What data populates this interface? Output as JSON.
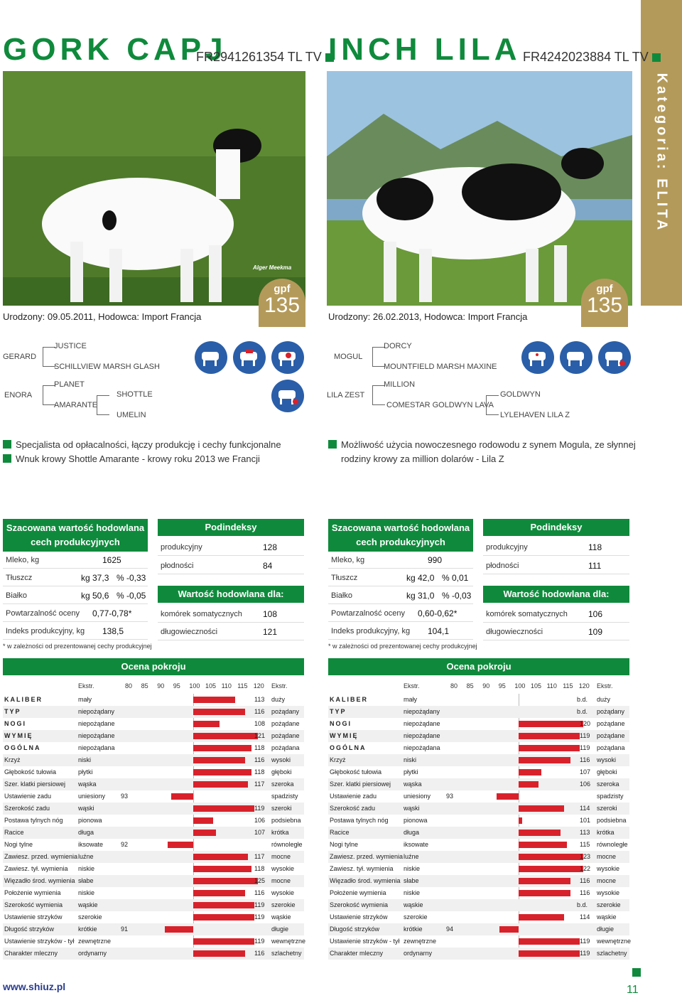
{
  "category": "Kategoria: ELITA",
  "colors": {
    "green": "#0f8a3c",
    "gold": "#b49a5a",
    "blue": "#2a5ea8",
    "red": "#d8222b"
  },
  "left": {
    "name": "GORK CAPJ",
    "id": "FR2941261354 TL TV",
    "born": "Urodzony: 09.05.2011, Hodowca: Import Francja",
    "photo_credit": "Alger Meekma",
    "gpf_label": "gpf",
    "gpf_value": "135",
    "pedigree": {
      "sire": "GERARD",
      "sire_sire": "JUSTICE",
      "sire_dam": "SCHILLVIEW MARSH GLASH",
      "dam": "ENORA",
      "dam_sire": "PLANET",
      "dam_dam": "AMARANTE",
      "dam_dam_sire": "SHOTTLE",
      "dam_dam_dam": "UMELIN"
    },
    "bullets": [
      "Specjalista od opłacalności, łączy produkcję i cechy funkcjonalne",
      "Wnuk krowy Shottle Amarante - krowy roku 2013 we Francji"
    ],
    "production": {
      "title1": "Szacowana wartość hodowlana",
      "title2": "cech produkcyjnych",
      "mleko_label": "Mleko, kg",
      "mleko": "1625",
      "tluszcz_label": "Tłuszcz",
      "tluszcz_kg": "kg 37,3",
      "tluszcz_pct": "% -0,33",
      "bialko_label": "Białko",
      "bialko_kg": "kg 50,6",
      "bialko_pct": "% -0,05",
      "powt_label": "Powtarzalność oceny",
      "powt": "0,77-0,78*",
      "indeks_label": "Indeks produkcyjny, kg",
      "indeks": "138,5",
      "note": "* w zależności od prezentowanej cechy produkcyjnej"
    },
    "podindeksy": {
      "title": "Podindeksy",
      "prod_label": "produkcyjny",
      "prod": "128",
      "plod_label": "płodności",
      "plod": "84",
      "wh_title": "Wartość hodowlana dla:",
      "kom_label": "komórek somatycznych",
      "kom": "108",
      "dlug_label": "długowieczności",
      "dlug": "121"
    },
    "ocena": {
      "title": "Ocena pokroju",
      "ekstr": "Ekstr.",
      "ticks": [
        "80",
        "85",
        "90",
        "95",
        "100",
        "105",
        "110",
        "115",
        "120"
      ],
      "traits": [
        {
          "name": "KALIBER",
          "low": "mały",
          "value": 113,
          "label": "113",
          "high": "duży",
          "bold": true
        },
        {
          "name": "TYP",
          "low": "niepożądany",
          "value": 116,
          "label": "116",
          "high": "pożądany",
          "bold": true
        },
        {
          "name": "NOGI",
          "low": "niepożądane",
          "value": 108,
          "label": "108",
          "high": "pożądane",
          "bold": true
        },
        {
          "name": "WYMIĘ",
          "low": "niepożądane",
          "value": 121,
          "label": "121",
          "high": "pożądane",
          "bold": true
        },
        {
          "name": "OGÓLNA",
          "low": "niepożądana",
          "value": 118,
          "label": "118",
          "high": "pożądana",
          "bold": true
        },
        {
          "name": "Krzyż",
          "low": "niski",
          "value": 116,
          "label": "116",
          "high": "wysoki"
        },
        {
          "name": "Głębokość tułowia",
          "low": "płytki",
          "value": 118,
          "label": "118",
          "high": "głęboki"
        },
        {
          "name": "Szer. klatki piersiowej",
          "low": "wąska",
          "value": 117,
          "label": "117",
          "high": "szeroka"
        },
        {
          "name": "Ustawienie zadu",
          "low": "uniesiony",
          "value": 93,
          "label": "93",
          "high": "spadzisty"
        },
        {
          "name": "Szerokość zadu",
          "low": "wąski",
          "value": 119,
          "label": "119",
          "high": "szeroki"
        },
        {
          "name": "Postawa tylnych nóg",
          "low": "pionowa",
          "value": 106,
          "label": "106",
          "high": "podsiebna"
        },
        {
          "name": "Racice",
          "low": "długa",
          "value": 107,
          "label": "107",
          "high": "krótka"
        },
        {
          "name": "Nogi tylne",
          "low": "iksowate",
          "value": 92,
          "label": "92",
          "high": "równoległe"
        },
        {
          "name": "Zawiesz. przed. wymienia",
          "low": "luźne",
          "value": 117,
          "label": "117",
          "high": "mocne"
        },
        {
          "name": "Zawiesz. tył. wymienia",
          "low": "niskie",
          "value": 118,
          "label": "118",
          "high": "wysokie"
        },
        {
          "name": "Więzadło środ. wymienia",
          "low": "słabe",
          "value": 125,
          "label": "125",
          "high": "mocne"
        },
        {
          "name": "Położenie wymienia",
          "low": "niskie",
          "value": 116,
          "label": "116",
          "high": "wysokie"
        },
        {
          "name": "Szerokość wymienia",
          "low": "wąskie",
          "value": 119,
          "label": "119",
          "high": "szerokie"
        },
        {
          "name": "Ustawienie strzyków",
          "low": "szerokie",
          "value": 119,
          "label": "119",
          "high": "wąskie"
        },
        {
          "name": "Długość strzyków",
          "low": "krótkie",
          "value": 91,
          "label": "91",
          "high": "długie"
        },
        {
          "name": "Ustawienie strzyków - tył",
          "low": "zewnętrzne",
          "value": 119,
          "label": "119",
          "high": "wewnętrzne"
        },
        {
          "name": "Charakter mleczny",
          "low": "ordynarny",
          "value": 116,
          "label": "116",
          "high": "szlachetny"
        }
      ]
    }
  },
  "right": {
    "name": "INCH LILA",
    "id": "FR4242023884 TL TV",
    "born": "Urodzony: 26.02.2013, Hodowca: Import Francja",
    "gpf_label": "gpf",
    "gpf_value": "135",
    "pedigree": {
      "sire": "MOGUL",
      "sire_sire": "DORCY",
      "sire_dam": "MOUNTFIELD MARSH MAXINE",
      "dam": "LILA ZEST",
      "dam_sire": "MILLION",
      "dam_dam": "COMESTAR GOLDWYN LAVA",
      "dam_dam_sire": "GOLDWYN",
      "dam_dam_dam": "LYLEHAVEN LILA Z"
    },
    "bullets": [
      "Możliwość użycia nowoczesnego rodowodu z synem Mogula, ze słynnej",
      "rodziny krowy za million dolarów - Lila Z"
    ],
    "production": {
      "title1": "Szacowana wartość hodowlana",
      "title2": "cech produkcyjnych",
      "mleko_label": "Mleko, kg",
      "mleko": "990",
      "tluszcz_label": "Tłuszcz",
      "tluszcz_kg": "kg 42,0",
      "tluszcz_pct": "% 0,01",
      "bialko_label": "Białko",
      "bialko_kg": "kg 31,0",
      "bialko_pct": "% -0,03",
      "powt_label": "Powtarzalność oceny",
      "powt": "0,60-0,62*",
      "indeks_label": "Indeks produkcyjny, kg",
      "indeks": "104,1",
      "note": "* w zależności od prezentowanej cechy produkcyjnej"
    },
    "podindeksy": {
      "title": "Podindeksy",
      "prod_label": "produkcyjny",
      "prod": "118",
      "plod_label": "płodności",
      "plod": "111",
      "wh_title": "Wartość hodowlana dla:",
      "kom_label": "komórek somatycznych",
      "kom": "106",
      "dlug_label": "długowieczności",
      "dlug": "109"
    },
    "ocena": {
      "title": "Ocena pokroju",
      "ekstr": "Ekstr.",
      "ticks": [
        "80",
        "85",
        "90",
        "95",
        "100",
        "105",
        "110",
        "115",
        "120"
      ],
      "traits": [
        {
          "name": "KALIBER",
          "low": "mały",
          "value": null,
          "label": "b.d.",
          "high": "duży",
          "bold": true
        },
        {
          "name": "TYP",
          "low": "niepożądany",
          "value": null,
          "label": "b.d.",
          "high": "pożądany",
          "bold": true
        },
        {
          "name": "NOGI",
          "low": "niepożądane",
          "value": 120,
          "label": "120",
          "high": "pożądane",
          "bold": true
        },
        {
          "name": "WYMIĘ",
          "low": "niepożądane",
          "value": 119,
          "label": "119",
          "high": "pożądane",
          "bold": true
        },
        {
          "name": "OGÓLNA",
          "low": "niepożądana",
          "value": 119,
          "label": "119",
          "high": "pożądana",
          "bold": true
        },
        {
          "name": "Krzyż",
          "low": "niski",
          "value": 116,
          "label": "116",
          "high": "wysoki"
        },
        {
          "name": "Głębokość tułowia",
          "low": "płytki",
          "value": 107,
          "label": "107",
          "high": "głęboki"
        },
        {
          "name": "Szer. klatki piersiowej",
          "low": "wąska",
          "value": 106,
          "label": "106",
          "high": "szeroka"
        },
        {
          "name": "Ustawienie zadu",
          "low": "uniesiony",
          "value": 93,
          "label": "93",
          "high": "spadzisty"
        },
        {
          "name": "Szerokość zadu",
          "low": "wąski",
          "value": 114,
          "label": "114",
          "high": "szeroki"
        },
        {
          "name": "Postawa tylnych nóg",
          "low": "pionowa",
          "value": 101,
          "label": "101",
          "high": "podsiebna"
        },
        {
          "name": "Racice",
          "low": "długa",
          "value": 113,
          "label": "113",
          "high": "krótka"
        },
        {
          "name": "Nogi tylne",
          "low": "iksowate",
          "value": 115,
          "label": "115",
          "high": "równoległe"
        },
        {
          "name": "Zawiesz. przed. wymienia",
          "low": "luźne",
          "value": 123,
          "label": "123",
          "high": "mocne"
        },
        {
          "name": "Zawiesz. tył. wymienia",
          "low": "niskie",
          "value": 122,
          "label": "122",
          "high": "wysokie"
        },
        {
          "name": "Więzadło środ. wymienia",
          "low": "słabe",
          "value": 116,
          "label": "116",
          "high": "mocne"
        },
        {
          "name": "Położenie wymienia",
          "low": "niskie",
          "value": 116,
          "label": "116",
          "high": "wysokie"
        },
        {
          "name": "Szerokość wymienia",
          "low": "wąskie",
          "value": null,
          "label": "b.d.",
          "high": "szerokie"
        },
        {
          "name": "Ustawienie strzyków",
          "low": "szerokie",
          "value": 114,
          "label": "114",
          "high": "wąskie"
        },
        {
          "name": "Długość strzyków",
          "low": "krótkie",
          "value": 94,
          "label": "94",
          "high": "długie"
        },
        {
          "name": "Ustawienie strzyków - tył",
          "low": "zewnętrzne",
          "value": 119,
          "label": "119",
          "high": "wewnętrzne"
        },
        {
          "name": "Charakter mleczny",
          "low": "ordynarny",
          "value": 119,
          "label": "119",
          "high": "szlachetny"
        }
      ]
    }
  },
  "footer": {
    "url": "www.shiuz.pl",
    "page": "11"
  }
}
